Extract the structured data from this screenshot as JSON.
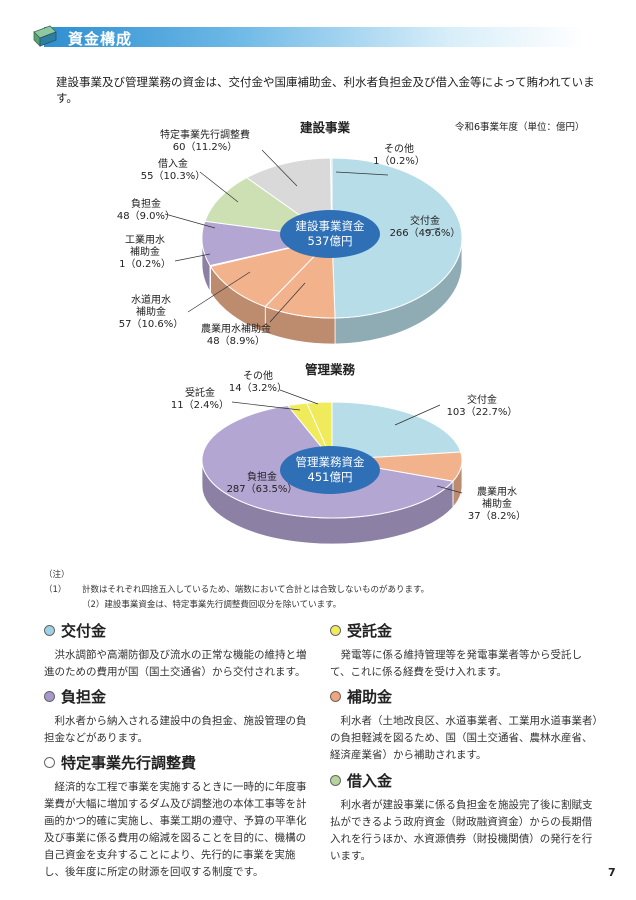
{
  "header": {
    "title": "資金構成"
  },
  "intro": "建設事業及び管理業務の資金は、交付金や国庫補助金、利水者負担金及び借入金等によって賄われています。",
  "unit_note": "令和6事業年度（単位：億円）",
  "colors": {
    "kofukin": "#b7dde8",
    "hojokin": "#f2b28c",
    "futankin": "#b3a6d3",
    "kariirekin": "#cde0b4",
    "tokutei": "#d9d9d9",
    "sonota": "#f0eb5a",
    "jutakukin": "#f0eb5a",
    "center": "#2e6fb5"
  },
  "chart_data": [
    {
      "type": "pie",
      "title": "建設事業",
      "center_label": [
        "建設事業資金",
        "537億円"
      ],
      "slices": [
        {
          "name": "交付金",
          "value": 266,
          "percent": "49.6%",
          "label": [
            "交付金",
            "266（49.6%）"
          ],
          "color_key": "kofukin"
        },
        {
          "name": "農業用水補助金",
          "value": 48,
          "percent": "8.9%",
          "label": [
            "農業用水補助金",
            "48（8.9%）"
          ],
          "color_key": "hojokin"
        },
        {
          "name": "水道用水補助金",
          "value": 57,
          "percent": "10.6%",
          "label": [
            "水道用水",
            "補助金",
            "57（10.6%）"
          ],
          "color_key": "hojokin"
        },
        {
          "name": "工業用水補助金",
          "value": 1,
          "percent": "0.2%",
          "label": [
            "工業用水",
            "補助金",
            "1（0.2%）"
          ],
          "color_key": "hojokin"
        },
        {
          "name": "負担金",
          "value": 48,
          "percent": "9.0%",
          "label": [
            "負担金",
            "48（9.0%）"
          ],
          "color_key": "futankin"
        },
        {
          "name": "借入金",
          "value": 55,
          "percent": "10.3%",
          "label": [
            "借入金",
            "55（10.3%）"
          ],
          "color_key": "kariirekin"
        },
        {
          "name": "特定事業先行調整費",
          "value": 60,
          "percent": "11.2%",
          "label": [
            "特定事業先行調整費",
            "60（11.2%）"
          ],
          "color_key": "tokutei"
        },
        {
          "name": "その他",
          "value": 1,
          "percent": "0.2%",
          "label": [
            "その他",
            "1（0.2%）"
          ],
          "color_key": "sonota"
        }
      ]
    },
    {
      "type": "pie",
      "title": "管理業務",
      "center_label": [
        "管理業務資金",
        "451億円"
      ],
      "slices": [
        {
          "name": "交付金",
          "value": 103,
          "percent": "22.7%",
          "label": [
            "交付金",
            "103（22.7%）"
          ],
          "color_key": "kofukin"
        },
        {
          "name": "農業用水補助金",
          "value": 37,
          "percent": "8.2%",
          "label": [
            "農業用水",
            "補助金",
            "37（8.2%）"
          ],
          "color_key": "hojokin"
        },
        {
          "name": "負担金",
          "value": 287,
          "percent": "63.5%",
          "label": [
            "負担金",
            "287（63.5%）"
          ],
          "color_key": "futankin"
        },
        {
          "name": "受託金",
          "value": 11,
          "percent": "2.4%",
          "label": [
            "受託金",
            "11（2.4%）"
          ],
          "color_key": "jutakukin"
        },
        {
          "name": "その他",
          "value": 14,
          "percent": "3.2%",
          "label": [
            "その他",
            "14（3.2%）"
          ],
          "color_key": "sonota"
        }
      ]
    }
  ],
  "notes": {
    "lead": "（注）（1）",
    "note1": "計数はそれぞれ四捨五入しているため、端数において合計とは合致しないものがあります。",
    "note2": "（2）建設事業資金は、特定事業先行調整費回収分を除いています。"
  },
  "terms": [
    {
      "title": "交付金",
      "color": "#9fd0e6",
      "text": "洪水調節や高潮防御及び流水の正常な機能の維持と増進のための費用が国（国土交通省）から交付されます。"
    },
    {
      "title": "受託金",
      "color": "#f0eb5a",
      "text": "発電等に係る維持管理等を発電事業者等から受託し て、これに係る経費を受け入れます。"
    },
    {
      "title": "負担金",
      "color": "#a898cc",
      "text": "利水者から納入される建設中の負担金、施設管理の負担金などがあります。"
    },
    {
      "title": "補助金",
      "color": "#f0a57c",
      "text": "利水者（土地改良区、水道事業者、工業用水道事業者）の負担軽減を図るため、国（国土交通省、農林水産省、経済産業省）から補助されます。"
    },
    {
      "title": "特定事業先行調整費",
      "color": "#ffffff",
      "text": "経済的な工程で事業を実施するときに一時的に年度事業費が大幅に増加するダム及び調整池の本体工事等を計画的かつ的確に実施し、事業工期の遵守、予算の平準化及び事業に係る費用の縮減を図ることを目的に、機構の自己資金を支弁することにより、先行的に事業を実施し、後年度に所定の財源を回収する制度です。"
    },
    {
      "title": "借入金",
      "color": "#b6d49a",
      "text": "利水者が建設事業に係る負担金を施設完了後に割賦支払ができるよう政府資金（財政融資資金）からの長期借入れを行うほか、水資源債券（財投機関債）の発行を行います。"
    }
  ],
  "page_number": "7"
}
